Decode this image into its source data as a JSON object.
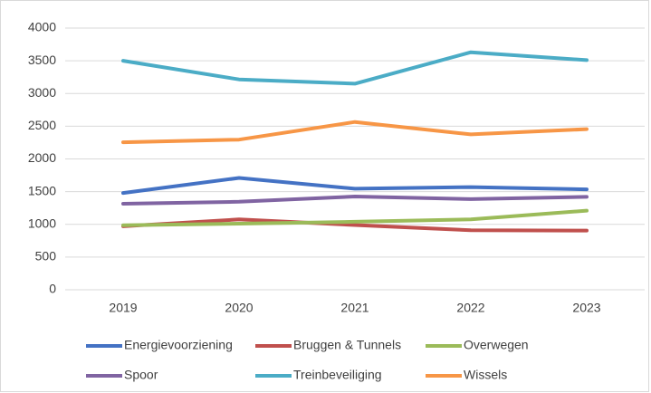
{
  "chart_data": {
    "type": "line",
    "categories": [
      "2019",
      "2020",
      "2021",
      "2022",
      "2023"
    ],
    "series": [
      {
        "name": "Energievoorziening",
        "color": "#4472c4",
        "values": [
          1480,
          1710,
          1545,
          1570,
          1535
        ]
      },
      {
        "name": "Bruggen & Tunnels",
        "color": "#c0504d",
        "values": [
          970,
          1075,
          990,
          910,
          905
        ]
      },
      {
        "name": "Overwegen",
        "color": "#9bbb59",
        "values": [
          985,
          1010,
          1040,
          1075,
          1210
        ]
      },
      {
        "name": "Spoor",
        "color": "#8064a2",
        "values": [
          1315,
          1345,
          1425,
          1385,
          1420
        ]
      },
      {
        "name": "Treinbeveiliging",
        "color": "#4bacc6",
        "values": [
          3500,
          3215,
          3150,
          3630,
          3510
        ]
      },
      {
        "name": "Wissels",
        "color": "#f79646",
        "values": [
          2255,
          2295,
          2565,
          2375,
          2455
        ]
      }
    ],
    "ylim": [
      0,
      4000
    ],
    "yticks": [
      0,
      500,
      1000,
      1500,
      2000,
      2500,
      3000,
      3500,
      4000
    ],
    "grid": true,
    "legend": "bottom"
  }
}
